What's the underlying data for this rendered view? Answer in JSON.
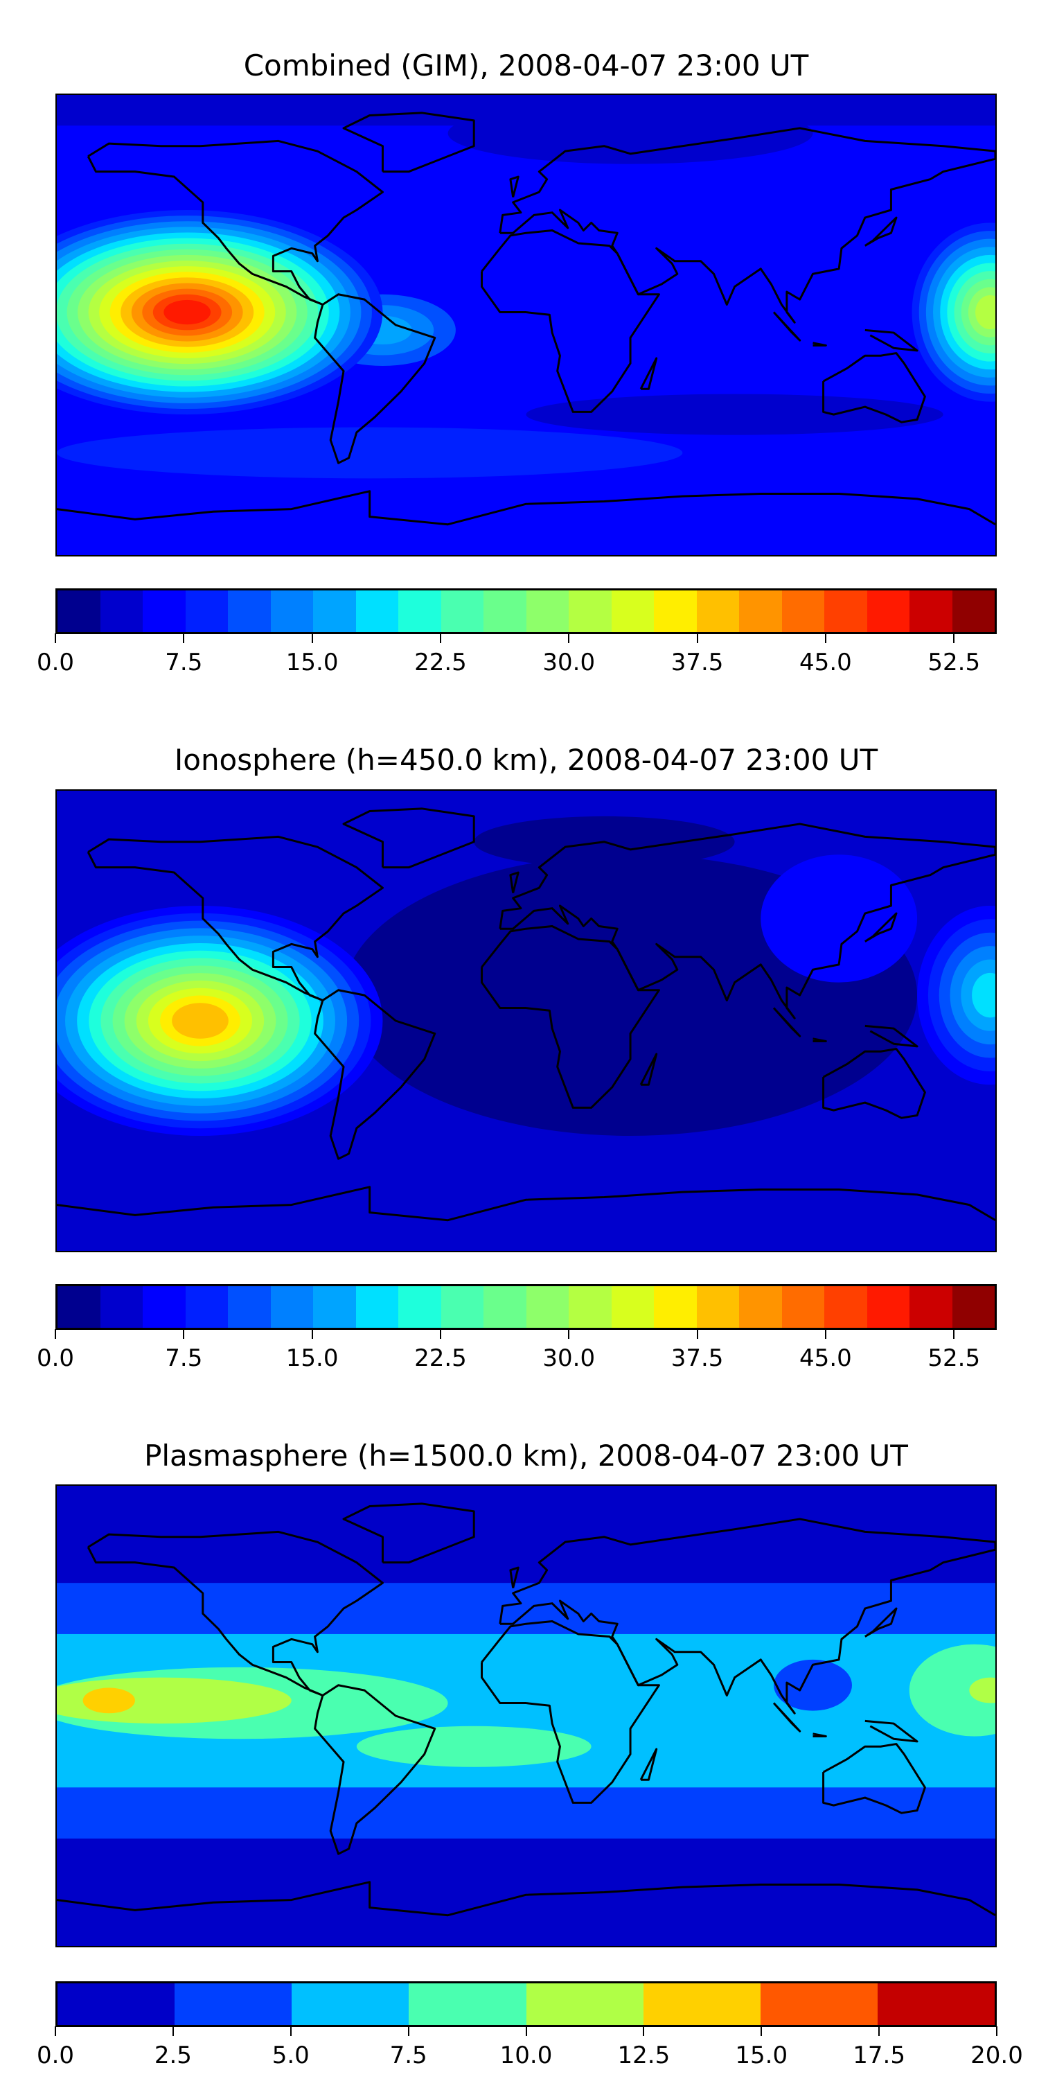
{
  "chart_data": [
    {
      "type": "heatmap",
      "title": "Combined (GIM), 2008-04-07 23:00 UT",
      "projection": "equirectangular world map with coastlines",
      "colormap": "jet",
      "levels": [
        0,
        55
      ],
      "level_step": 2.5,
      "colors": [
        "#00008f",
        "#0000cd",
        "#0000ff",
        "#0020ff",
        "#0050ff",
        "#0080ff",
        "#00a4ff",
        "#00e0ff",
        "#1effdc",
        "#4affb0",
        "#6aff8c",
        "#8eff6a",
        "#b4ff42",
        "#d8ff1e",
        "#ffee00",
        "#ffc000",
        "#ff9400",
        "#ff6c00",
        "#ff4000",
        "#ff1a00",
        "#cc0000",
        "#900000"
      ],
      "ticks": [
        "0.0",
        "7.5",
        "15.0",
        "22.5",
        "30.0",
        "37.5",
        "45.0",
        "52.5"
      ],
      "tick_values": [
        0,
        7.5,
        15,
        22.5,
        30,
        37.5,
        45,
        52.5
      ],
      "max_region": {
        "lon": -130,
        "lat": 5,
        "approx_value": 50
      }
    },
    {
      "type": "heatmap",
      "title": "Ionosphere  (h=450.0 km), 2008-04-07 23:00 UT",
      "projection": "equirectangular world map with coastlines",
      "colormap": "jet",
      "levels": [
        0,
        55
      ],
      "level_step": 2.5,
      "colors": [
        "#00008f",
        "#0000cd",
        "#0000ff",
        "#0020ff",
        "#0050ff",
        "#0080ff",
        "#00a4ff",
        "#00e0ff",
        "#1effdc",
        "#4affb0",
        "#6aff8c",
        "#8eff6a",
        "#b4ff42",
        "#d8ff1e",
        "#ffee00",
        "#ffc000",
        "#ff9400",
        "#ff6c00",
        "#ff4000",
        "#ff1a00",
        "#cc0000",
        "#900000"
      ],
      "ticks": [
        "0.0",
        "7.5",
        "15.0",
        "22.5",
        "30.0",
        "37.5",
        "45.0",
        "52.5"
      ],
      "tick_values": [
        0,
        7.5,
        15,
        22.5,
        30,
        37.5,
        45,
        52.5
      ],
      "max_region": {
        "lon": -128,
        "lat": 9,
        "approx_value": 40
      }
    },
    {
      "type": "heatmap",
      "title": "Plasmasphere (h=1500.0 km), 2008-04-07 23:00 UT",
      "projection": "equirectangular world map with coastlines",
      "colormap": "jet",
      "levels": [
        0,
        20
      ],
      "level_step": 2.5,
      "colors": [
        "#0000c8",
        "#0040ff",
        "#00c0ff",
        "#4affb0",
        "#b0ff46",
        "#ffd000",
        "#ff5800",
        "#c40000"
      ],
      "ticks": [
        "0.0",
        "2.5",
        "5.0",
        "7.5",
        "10.0",
        "12.5",
        "15.0",
        "17.5",
        "20.0"
      ],
      "tick_values": [
        0,
        2.5,
        5,
        7.5,
        10,
        12.5,
        15,
        17.5,
        20
      ],
      "max_region": {
        "lon": -160,
        "lat": 5,
        "approx_value": 13
      }
    }
  ]
}
